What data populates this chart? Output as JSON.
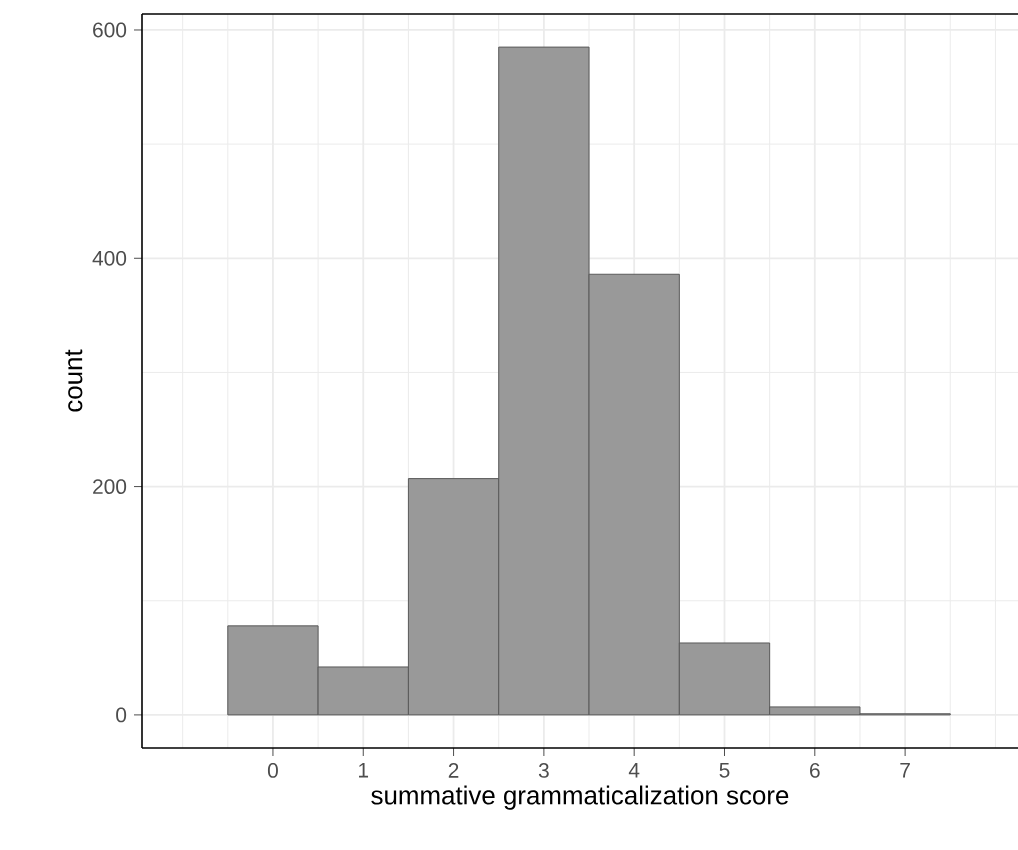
{
  "chart_data": {
    "type": "histogram",
    "xlabel": "summative grammaticalization score",
    "ylabel": "count",
    "bins": [
      -0.5,
      0.5,
      1.5,
      2.5,
      3.5,
      4.5,
      5.5,
      6.5,
      7.5
    ],
    "values": [
      78,
      42,
      207,
      585,
      386,
      63,
      7,
      1
    ],
    "color": "#999999",
    "xlim": [
      -1.45,
      8.25
    ],
    "ylim": [
      -29,
      614
    ],
    "xticks": [
      0,
      1,
      2,
      3,
      4,
      5,
      6,
      7
    ],
    "yticks": [
      0,
      200,
      400,
      600
    ],
    "grid": true
  }
}
